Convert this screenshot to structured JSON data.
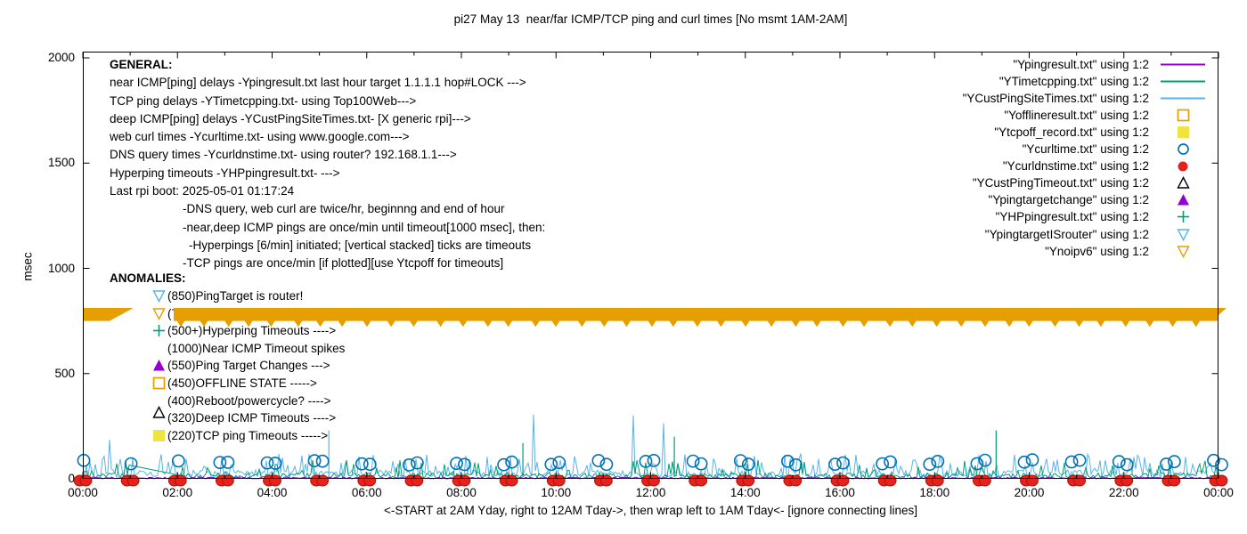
{
  "window": {
    "title": "pi27 May 13  near/far ICMP/TCP ping and curl times [No msmt 1AM-2AM]"
  },
  "footer": "<-START at 2AM Yday, right to 12AM Tday->, then wrap left to 1AM Tday<- [ignore connecting lines]",
  "y_axis": {
    "label": "msec",
    "ticks": [
      "2000",
      "1500",
      "1000",
      "500",
      "0"
    ]
  },
  "x_axis": {
    "ticks": [
      "00:00",
      "02:00",
      "04:00",
      "06:00",
      "08:00",
      "10:00",
      "12:00",
      "14:00",
      "16:00",
      "18:00",
      "20:00",
      "22:00",
      "00:00"
    ]
  },
  "general": {
    "heading": "GENERAL:",
    "lines": [
      {
        "text": "near ICMP[ping] delays -Ypingresult.txt last hour target 1.1.1.1 hop#LOCK --->",
        "ind": 0
      },
      {
        "text": "TCP ping delays -YTimetcpping.txt- using Top100Web--->",
        "ind": 0
      },
      {
        "text": "deep ICMP[ping] delays -YCustPingSiteTimes.txt- [X generic rpi]--->",
        "ind": 0
      },
      {
        "text": "web curl times -Ycurltime.txt- using www.google.com--->",
        "ind": 0
      },
      {
        "text": "DNS query times -Ycurldnstime.txt- using router? 192.168.1.1--->",
        "ind": 0
      },
      {
        "text": "Hyperping timeouts -YHPpingresult.txt- --->",
        "ind": 0
      },
      {
        "text": "Last rpi boot: 2025-05-01 01:17:24",
        "ind": 0
      },
      {
        "text": "-DNS query, web curl are twice/hr, beginnng and end of hour",
        "ind": 1
      },
      {
        "text": "-near,deep ICMP pings are once/min until timeout[1000 msec], then:",
        "ind": 1
      },
      {
        "text": "-Hyperpings [6/min] initiated; [vertical stacked] ticks are timeouts",
        "ind": 2
      },
      {
        "text": "-TCP pings are once/min [if plotted][use Ytcpoff for timeouts]",
        "ind": 1
      }
    ]
  },
  "anomalies": {
    "heading": "ANOMALIES:",
    "items": [
      {
        "marker": "triangle-down-open",
        "color": "#56b4e9",
        "text": "(850)PingTarget is router!"
      },
      {
        "marker": "triangle-down-open",
        "color": "#e69f00",
        "text": "(785)ipv6 failed ---->"
      },
      {
        "marker": "plus",
        "color": "#009e73",
        "text": "(500+)Hyperping Timeouts ---->"
      },
      {
        "marker": "none",
        "color": "",
        "text": "(1000)Near ICMP Timeout spikes"
      },
      {
        "marker": "triangle-up-filled",
        "color": "#9400d3",
        "text": "(550)Ping Target Changes --->"
      },
      {
        "marker": "square-open",
        "color": "#e69f00",
        "text": "(450)OFFLINE STATE ----->"
      },
      {
        "marker": "none",
        "color": "",
        "text": "(400)Reboot/powercycle? ---->"
      },
      {
        "marker": "triangle-up-open",
        "color": "#000000",
        "text": "(320)Deep ICMP Timeouts ---->"
      },
      {
        "marker": "square-filled",
        "color": "#f0e442",
        "text": "(220)TCP ping Timeouts ----->"
      }
    ]
  },
  "legend": {
    "items": [
      {
        "label": "\"Ypingresult.txt\" using 1:2",
        "marker": "line",
        "color": "#9400d3"
      },
      {
        "label": "\"YTimetcpping.txt\" using 1:2",
        "marker": "line",
        "color": "#009e73"
      },
      {
        "label": "\"YCustPingSiteTimes.txt\" using 1:2",
        "marker": "line",
        "color": "#56b4e9"
      },
      {
        "label": "\"Yofflineresult.txt\" using 1:2",
        "marker": "square-open",
        "color": "#e69f00"
      },
      {
        "label": "\"Ytcpoff_record.txt\" using 1:2",
        "marker": "square-filled",
        "color": "#f0e442"
      },
      {
        "label": "\"Ycurltime.txt\" using 1:2",
        "marker": "circle-open",
        "color": "#0072b2"
      },
      {
        "label": "\"Ycurldnstime.txt\" using 1:2",
        "marker": "circle-filled",
        "color": "#e4231d"
      },
      {
        "label": "\"YCustPingTimeout.txt\" using 1:2",
        "marker": "triangle-up-open",
        "color": "#000000"
      },
      {
        "label": "\"Ypingtargetchange\" using 1:2",
        "marker": "triangle-up-filled",
        "color": "#9400d3"
      },
      {
        "label": "\"YHPpingresult.txt\" using 1:2",
        "marker": "plus",
        "color": "#009e73"
      },
      {
        "label": "\"YpingtargetISrouter\" using 1:2",
        "marker": "triangle-down-open",
        "color": "#56b4e9"
      },
      {
        "label": "\"Ynoipv6\" using 1:2",
        "marker": "triangle-down-open",
        "color": "#e69f00"
      }
    ]
  },
  "chart_data": {
    "type": "line",
    "title": "pi27 May 13  near/far ICMP/TCP ping and curl times [No msmt 1AM-2AM]",
    "xlabel": "<-START at 2AM Yday, right to 12AM Tday->, then wrap left to 1AM Tday<- [ignore connecting lines]",
    "ylabel": "msec",
    "ylim": [
      0,
      2000
    ],
    "yticks": [
      0,
      500,
      1000,
      1500,
      2000
    ],
    "x_hours": 24,
    "xtick_every_hours": 2,
    "grid": false,
    "legend_position": "top-right",
    "no_measurement_gap_hours": [
      1,
      2
    ],
    "series": [
      {
        "name": "Ypingresult.txt",
        "style": "line",
        "color": "#9400d3",
        "trace": {
          "base": [
            0,
            8
          ]
        }
      },
      {
        "name": "YTimetcpping.txt",
        "style": "line",
        "color": "#009e73",
        "trace": {
          "base": [
            2,
            28
          ],
          "spike_p": 0.1,
          "spike": [
            35,
            90
          ]
        },
        "gap_hours": [
          1,
          2
        ],
        "gap_connector_start_msec": 65
      },
      {
        "name": "YCustPingSiteTimes.txt",
        "style": "line",
        "color": "#56b4e9",
        "trace": {
          "base": [
            8,
            42
          ],
          "spike_p": 0.22,
          "spike": [
            45,
            120
          ],
          "rare_p": 0.006,
          "rare": [
            140,
            330
          ]
        }
      },
      {
        "name": "Yofflineresult.txt",
        "style": "square-open",
        "color": "#e69f00",
        "visible_points": 0
      },
      {
        "name": "Ytcpoff_record.txt",
        "style": "square-filled",
        "color": "#f0e442",
        "visible_points": 0
      },
      {
        "name": "Ycurltime.txt",
        "style": "circle-open",
        "color": "#0072b2",
        "hourly": {
          "msec": 78,
          "per_hour": 2,
          "single_before_hour": 3
        }
      },
      {
        "name": "Ycurldnstime.txt",
        "style": "circle-filled",
        "color": "#e4231d",
        "hourly": {
          "msec": 0,
          "per_hour": 2
        }
      },
      {
        "name": "YCustPingTimeout.txt",
        "style": "triangle-up-open",
        "color": "#000000",
        "visible_points": 0
      },
      {
        "name": "Ypingtargetchange",
        "style": "triangle-up-filled",
        "color": "#9400d3",
        "visible_points": 0
      },
      {
        "name": "YHPpingresult.txt",
        "style": "plus",
        "color": "#009e73",
        "visible_points": 0
      },
      {
        "name": "YpingtargetISrouter",
        "style": "triangle-down-open",
        "color": "#56b4e9",
        "visible_points": 0
      },
      {
        "name": "Ynoipv6",
        "style": "triangle-down-open",
        "color": "#e69f00",
        "band": {
          "msec": [
            750,
            812
          ],
          "from_hour": 1.92,
          "to_hour": 24,
          "left_fragment_hours": [
            0,
            1.07
          ],
          "tip_msec": 722,
          "tip_every_hour": 0.5
        }
      }
    ],
    "notable_spikes": [
      {
        "series": "YCustPingSiteTimes.txt",
        "hour": 5.2,
        "msec": 230
      },
      {
        "series": "YTimetcpping.txt",
        "hour": 9.3,
        "msec": 170
      },
      {
        "series": "YTimetcpping.txt",
        "hour": 12.5,
        "msec": 200
      },
      {
        "series": "YTimetcpping.txt",
        "hour": 19.3,
        "msec": 230
      }
    ]
  }
}
